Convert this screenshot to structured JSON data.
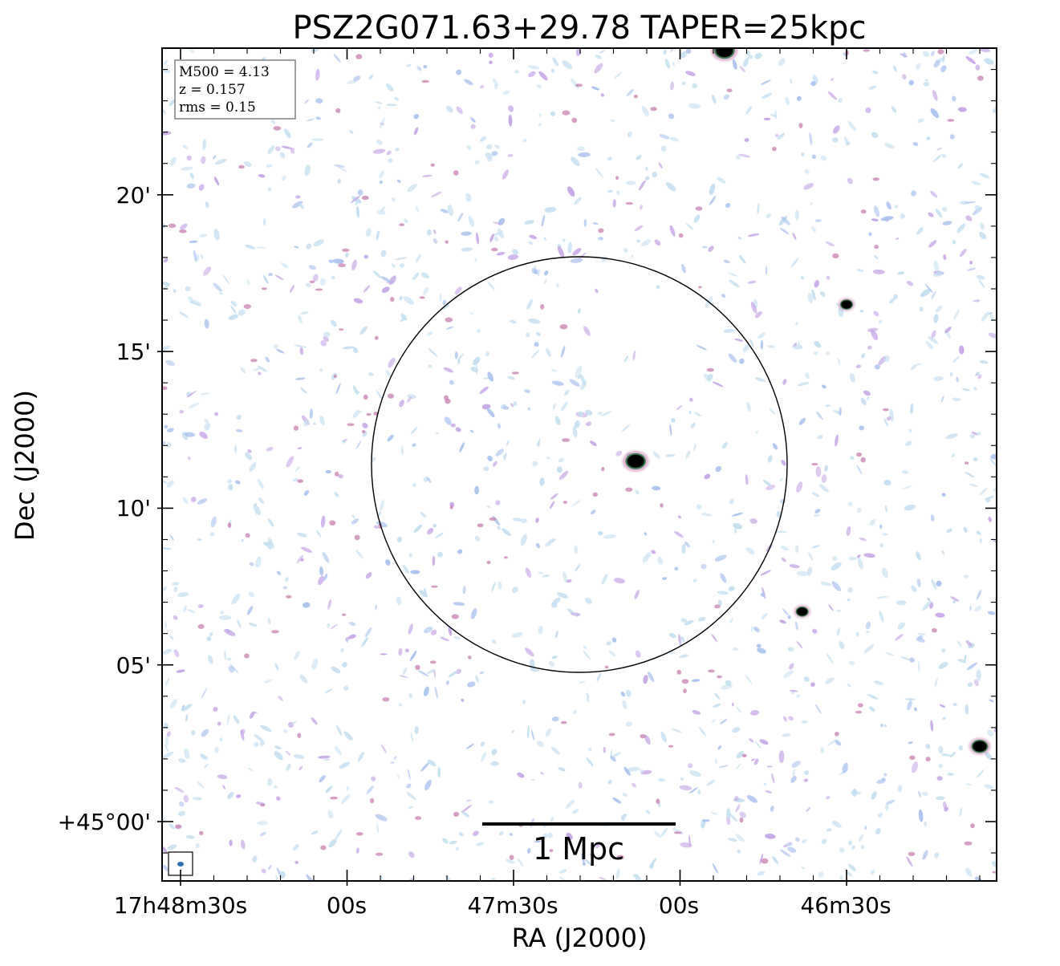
{
  "chart_data": {
    "type": "heatmap",
    "title": "PSZ2G071.63+29.78 TAPER=25kpc",
    "xlabel": "RA (J2000)",
    "ylabel": "Dec (J2000)",
    "x_ticks": [
      "17h48m30s",
      "00s",
      "47m30s",
      "00s",
      "46m30s"
    ],
    "y_ticks": [
      "+45°00'",
      "05'",
      "10'",
      "15'",
      "20'"
    ],
    "info_box": [
      "M500 = 4.13",
      "z = 0.157",
      "rms = 0.15"
    ],
    "scalebar_label": "1 Mpc",
    "colors": {
      "noise_light": "#c5dff0",
      "noise_blue": "#a9c1ee",
      "noise_violet": "#c6a6e6",
      "halo_pink": "#c87fb0",
      "ring_green": "#3f7a52",
      "core_black": "#000000",
      "beam_blue": "#2f6fb0"
    },
    "cluster_circle": true,
    "sources": [
      {
        "ra": 412,
        "dec": 24.6,
        "size": 1.6,
        "kind": "point"
      },
      {
        "ra": 234,
        "dec": 24.2,
        "size": 1.1,
        "kind": "point"
      },
      {
        "ra": 247,
        "dec": 23.4,
        "size": 1.8,
        "kind": "point"
      },
      {
        "ra": 331,
        "dec": 20.7,
        "size": 1.4,
        "kind": "point"
      },
      {
        "ra": 289,
        "dec": 20.9,
        "size": 1.3,
        "kind": "point"
      },
      {
        "ra": 236,
        "dec": 19.3,
        "size": 1.4,
        "kind": "point"
      },
      {
        "ra": 390,
        "dec": 16.5,
        "size": 1.0,
        "kind": "point"
      },
      {
        "ra": 331,
        "dec": 15.1,
        "size": 1.1,
        "kind": "point"
      },
      {
        "ra": 310,
        "dec": 15.0,
        "size": 1.2,
        "kind": "point"
      },
      {
        "ra": 274,
        "dec": 14.0,
        "size": 1.4,
        "kind": "point"
      },
      {
        "ra": 428,
        "dec": 11.5,
        "size": 1.6,
        "kind": "point"
      },
      {
        "ra": 345,
        "dec": 10.3,
        "size": 1.6,
        "kind": "point"
      },
      {
        "ra": 263,
        "dec": 10.0,
        "size": 1.0,
        "kind": "point"
      },
      {
        "ra": 398,
        "dec": 6.7,
        "size": 1.0,
        "kind": "point"
      },
      {
        "ra": 322,
        "dec": 7.6,
        "size": 3.4,
        "kind": "core"
      },
      {
        "ra": 297,
        "dec": 5.7,
        "size": 1.6,
        "kind": "point"
      },
      {
        "ra": 254,
        "dec": 5.3,
        "size": 1.6,
        "kind": "point"
      },
      {
        "ra": 366,
        "dec": 2.4,
        "size": 1.3,
        "kind": "point"
      },
      {
        "ra": 311,
        "dec": 1.2,
        "size": 1.3,
        "kind": "point"
      },
      {
        "ra": 282,
        "dec": 0.1,
        "size": 1.0,
        "kind": "point"
      },
      {
        "ra": 277,
        "dec": -0.5,
        "size": 1.0,
        "kind": "point"
      },
      {
        "ra": 229,
        "dec": -1.3,
        "size": 0.9,
        "kind": "point"
      }
    ],
    "extended_sources": [
      {
        "ra": [
          305,
          300,
          296
        ],
        "dec": [
          14.2,
          13.5,
          12.9
        ]
      },
      {
        "ra": [
          357,
          360,
          359
        ],
        "dec": [
          12.5,
          11.7,
          10.9
        ]
      },
      {
        "ra": [
          320,
          309,
          303,
          300
        ],
        "dec": [
          7.4,
          6.8,
          6.4,
          5.9
        ]
      }
    ]
  }
}
